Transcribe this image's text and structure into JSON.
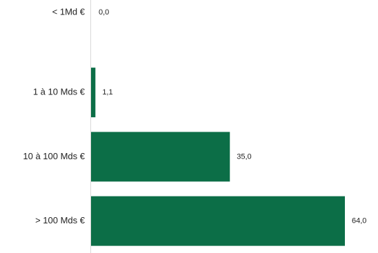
{
  "chart_data": {
    "type": "bar",
    "orientation": "horizontal",
    "categories": [
      "< 1Md €",
      "1 à 10 Mds €",
      "10 à 100 Mds €",
      "> 100 Mds €"
    ],
    "values": [
      0.0,
      1.1,
      35.0,
      64.0
    ],
    "value_labels": [
      "0,0",
      "1,1",
      "35,0",
      "64,0"
    ],
    "xlim": [
      0,
      64
    ],
    "grid": false,
    "legend": "none",
    "bar_color": "#0c6e47"
  }
}
